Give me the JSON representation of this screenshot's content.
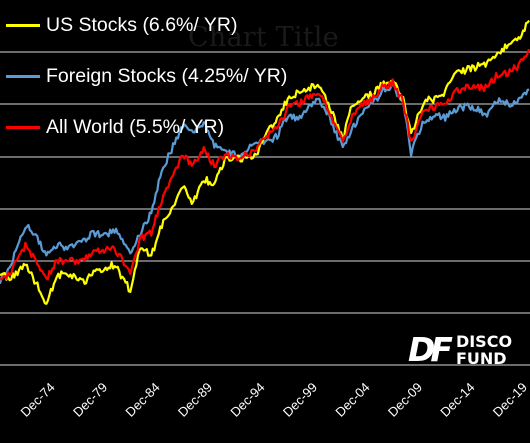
{
  "chart_data": {
    "type": "line",
    "title": "Chart Title",
    "xlabel": "",
    "ylabel": "",
    "y_scale": "log",
    "ylim": [
      0.65,
      4.4
    ],
    "grid": "horizontal",
    "legend_position": "top-left",
    "x_tick_labels": [
      "Dec-74",
      "Dec-79",
      "Dec-84",
      "Dec-89",
      "Dec-94",
      "Dec-99",
      "Dec-04",
      "Dec-09",
      "Dec-14",
      "Dec-19"
    ],
    "series": [
      {
        "name": "US Stocks (6.6%/ YR)",
        "color": "#ffff00",
        "values": [
          [
            "1970-01",
            1.05
          ],
          [
            "1970-12",
            1.02
          ],
          [
            "1972-06",
            1.1
          ],
          [
            "1973-06",
            1.0
          ],
          [
            "1974-06",
            0.9
          ],
          [
            "1975-06",
            1.04
          ],
          [
            "1976-06",
            1.05
          ],
          [
            "1977-12",
            1.0
          ],
          [
            "1978-12",
            1.05
          ],
          [
            "1979-12",
            1.08
          ],
          [
            "1980-12",
            1.1
          ],
          [
            "1982-06",
            0.96
          ],
          [
            "1983-06",
            1.22
          ],
          [
            "1984-06",
            1.15
          ],
          [
            "1985-06",
            1.35
          ],
          [
            "1987-06",
            1.65
          ],
          [
            "1988-06",
            1.52
          ],
          [
            "1989-06",
            1.72
          ],
          [
            "1990-06",
            1.68
          ],
          [
            "1991-06",
            1.9
          ],
          [
            "1992-12",
            1.92
          ],
          [
            "1994-06",
            1.95
          ],
          [
            "1995-06",
            2.22
          ],
          [
            "1996-06",
            2.35
          ],
          [
            "1997-06",
            2.62
          ],
          [
            "1998-06",
            2.72
          ],
          [
            "1999-06",
            2.78
          ],
          [
            "2000-06",
            2.82
          ],
          [
            "2001-06",
            2.52
          ],
          [
            "2002-09",
            2.12
          ],
          [
            "2003-06",
            2.48
          ],
          [
            "2004-06",
            2.62
          ],
          [
            "2005-06",
            2.68
          ],
          [
            "2006-06",
            2.82
          ],
          [
            "2007-06",
            2.88
          ],
          [
            "2008-06",
            2.62
          ],
          [
            "2009-03",
            2.18
          ],
          [
            "2010-06",
            2.6
          ],
          [
            "2011-06",
            2.62
          ],
          [
            "2012-06",
            2.72
          ],
          [
            "2013-06",
            3.0
          ],
          [
            "2014-06",
            3.05
          ],
          [
            "2015-06",
            3.1
          ],
          [
            "2016-06",
            3.15
          ],
          [
            "2017-06",
            3.35
          ],
          [
            "2018-06",
            3.45
          ],
          [
            "2019-06",
            3.6
          ],
          [
            "2020-06",
            3.95
          ]
        ]
      },
      {
        "name": "Foreign Stocks (4.25%/ YR)",
        "color": "#5b9bd5",
        "values": [
          [
            "1970-01",
            1.0
          ],
          [
            "1970-12",
            1.08
          ],
          [
            "1972-06",
            1.35
          ],
          [
            "1973-06",
            1.28
          ],
          [
            "1974-06",
            1.15
          ],
          [
            "1975-06",
            1.22
          ],
          [
            "1976-06",
            1.2
          ],
          [
            "1977-12",
            1.24
          ],
          [
            "1978-12",
            1.3
          ],
          [
            "1979-12",
            1.28
          ],
          [
            "1980-12",
            1.32
          ],
          [
            "1982-06",
            1.18
          ],
          [
            "1983-06",
            1.3
          ],
          [
            "1984-06",
            1.45
          ],
          [
            "1985-06",
            1.8
          ],
          [
            "1987-06",
            2.28
          ],
          [
            "1988-06",
            2.18
          ],
          [
            "1989-06",
            2.32
          ],
          [
            "1990-06",
            2.05
          ],
          [
            "1991-06",
            2.02
          ],
          [
            "1992-12",
            1.92
          ],
          [
            "1994-06",
            2.12
          ],
          [
            "1995-06",
            2.08
          ],
          [
            "1996-06",
            2.16
          ],
          [
            "1997-06",
            2.4
          ],
          [
            "1998-06",
            2.36
          ],
          [
            "1999-06",
            2.52
          ],
          [
            "2000-06",
            2.6
          ],
          [
            "2001-06",
            2.38
          ],
          [
            "2002-09",
            2.02
          ],
          [
            "2003-06",
            2.22
          ],
          [
            "2004-06",
            2.42
          ],
          [
            "2005-06",
            2.55
          ],
          [
            "2006-06",
            2.72
          ],
          [
            "2007-06",
            2.82
          ],
          [
            "2008-06",
            2.55
          ],
          [
            "2009-03",
            1.98
          ],
          [
            "2010-06",
            2.35
          ],
          [
            "2011-06",
            2.4
          ],
          [
            "2012-06",
            2.38
          ],
          [
            "2013-06",
            2.48
          ],
          [
            "2014-06",
            2.52
          ],
          [
            "2015-06",
            2.48
          ],
          [
            "2016-06",
            2.42
          ],
          [
            "2017-06",
            2.6
          ],
          [
            "2018-06",
            2.55
          ],
          [
            "2019-06",
            2.6
          ],
          [
            "2020-06",
            2.75
          ]
        ]
      },
      {
        "name": "All World (5.5%/ YR)",
        "color": "#ff0000",
        "values": [
          [
            "1970-01",
            1.02
          ],
          [
            "1970-12",
            1.05
          ],
          [
            "1972-06",
            1.22
          ],
          [
            "1973-06",
            1.12
          ],
          [
            "1974-06",
            1.02
          ],
          [
            "1975-06",
            1.12
          ],
          [
            "1976-06",
            1.12
          ],
          [
            "1977-12",
            1.12
          ],
          [
            "1978-12",
            1.18
          ],
          [
            "1979-12",
            1.18
          ],
          [
            "1980-12",
            1.2
          ],
          [
            "1982-06",
            1.06
          ],
          [
            "1983-06",
            1.26
          ],
          [
            "1984-06",
            1.3
          ],
          [
            "1985-06",
            1.55
          ],
          [
            "1987-06",
            1.95
          ],
          [
            "1988-06",
            1.85
          ],
          [
            "1989-06",
            2.0
          ],
          [
            "1990-06",
            1.85
          ],
          [
            "1991-06",
            1.95
          ],
          [
            "1992-12",
            1.92
          ],
          [
            "1994-06",
            2.02
          ],
          [
            "1995-06",
            2.15
          ],
          [
            "1996-06",
            2.25
          ],
          [
            "1997-06",
            2.5
          ],
          [
            "1998-06",
            2.55
          ],
          [
            "1999-06",
            2.65
          ],
          [
            "2000-06",
            2.7
          ],
          [
            "2001-06",
            2.45
          ],
          [
            "2002-09",
            2.08
          ],
          [
            "2003-06",
            2.35
          ],
          [
            "2004-06",
            2.52
          ],
          [
            "2005-06",
            2.62
          ],
          [
            "2006-06",
            2.78
          ],
          [
            "2007-06",
            2.86
          ],
          [
            "2008-06",
            2.58
          ],
          [
            "2009-03",
            2.08
          ],
          [
            "2010-06",
            2.48
          ],
          [
            "2011-06",
            2.52
          ],
          [
            "2012-06",
            2.55
          ],
          [
            "2013-06",
            2.72
          ],
          [
            "2014-06",
            2.78
          ],
          [
            "2015-06",
            2.78
          ],
          [
            "2016-06",
            2.78
          ],
          [
            "2017-06",
            2.98
          ],
          [
            "2018-06",
            3.0
          ],
          [
            "2019-06",
            3.12
          ],
          [
            "2020-06",
            3.4
          ]
        ]
      }
    ]
  },
  "logo": {
    "mark": "DF",
    "line1": "DISCO",
    "line2": "FUND"
  }
}
